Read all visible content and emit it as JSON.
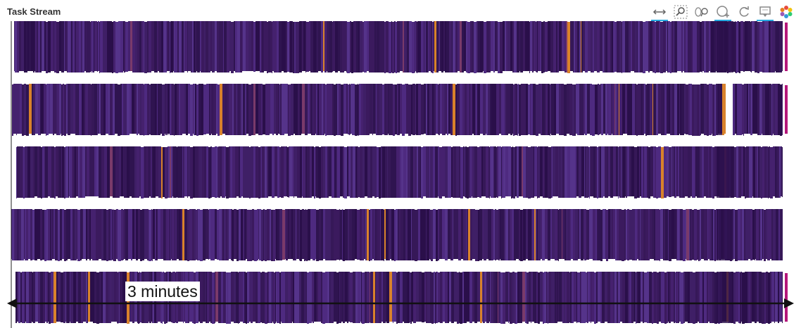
{
  "panel": {
    "title": "Task Stream"
  },
  "toolbar": {
    "tools": [
      {
        "name": "x-pan-tool-icon",
        "active": true
      },
      {
        "name": "box-zoom-tool-icon",
        "active": false
      },
      {
        "name": "wheel-zoom-tool-icon",
        "active": false
      },
      {
        "name": "zoom-in-tool-icon",
        "active": true
      },
      {
        "name": "reset-tool-icon",
        "active": false
      },
      {
        "name": "hover-tool-icon",
        "active": true
      },
      {
        "name": "bokeh-logo-icon",
        "active": false
      }
    ]
  },
  "annotation": {
    "label": "3 minutes"
  },
  "colors": {
    "bar_base": "#3b1a5e",
    "bar_dark": "#2a0f4a",
    "bar_mid": "#4a2d7a",
    "bar_orange": "#d9822b",
    "bar_magenta": "#b5177a",
    "arrow": "#111111"
  },
  "chart_data": {
    "type": "bar",
    "title": "Task Stream",
    "rows": 5
  }
}
